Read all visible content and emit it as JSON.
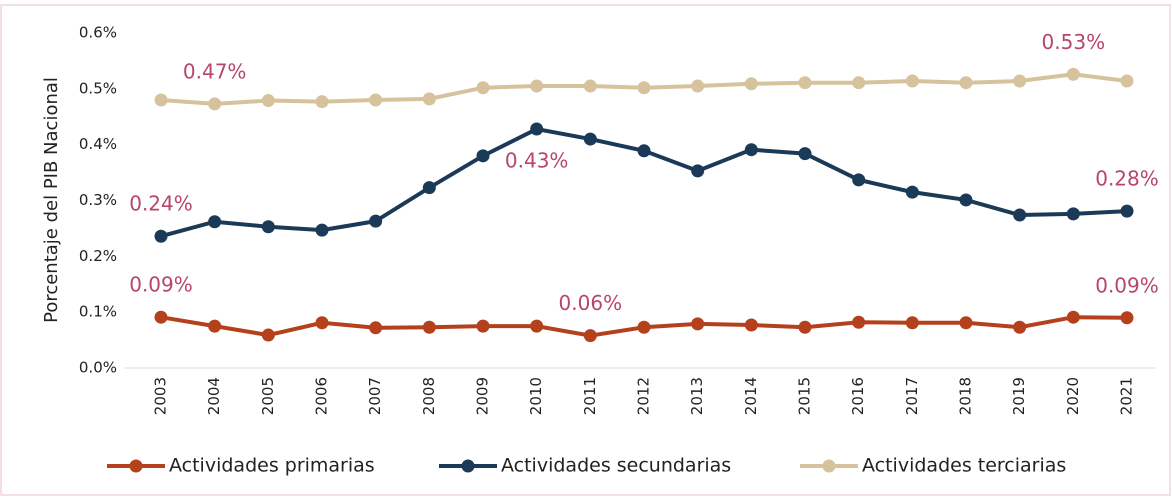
{
  "chart_data": {
    "type": "line",
    "y_label": "Porcentaje del PIB Nacional",
    "categories": [
      "2003",
      "2004",
      "2005",
      "2006",
      "2007",
      "2008",
      "2009",
      "2010",
      "2011",
      "2012",
      "2013",
      "2014",
      "2015",
      "2016",
      "2017",
      "2018",
      "2019",
      "2020",
      "2021"
    ],
    "ylim": [
      0,
      0.6
    ],
    "yticks": [
      {
        "value": 0,
        "label": "0.0%"
      },
      {
        "value": 0.1,
        "label": "0.1%"
      },
      {
        "value": 0.2,
        "label": "0.2%"
      },
      {
        "value": 0.3,
        "label": "0.3%"
      },
      {
        "value": 0.4,
        "label": "0.4%"
      },
      {
        "value": 0.5,
        "label": "0.5%"
      },
      {
        "value": 0.6,
        "label": "0.6%"
      }
    ],
    "value_label_color": "#b8456f",
    "legend": "bottom",
    "series": [
      {
        "name": "Actividades primarias",
        "color": "#b5401c",
        "values": [
          0.091,
          0.075,
          0.059,
          0.081,
          0.072,
          0.073,
          0.075,
          0.075,
          0.058,
          0.073,
          0.079,
          0.077,
          0.073,
          0.082,
          0.081,
          0.081,
          0.073,
          0.091,
          0.09
        ],
        "value_labels": [
          "0.09%",
          null,
          null,
          null,
          null,
          null,
          null,
          null,
          "0.06%",
          null,
          null,
          null,
          null,
          null,
          null,
          null,
          null,
          null,
          "0.09%"
        ]
      },
      {
        "name": "Actividades secundarias",
        "color": "#1b3a57",
        "values": [
          0.236,
          0.262,
          0.253,
          0.247,
          0.263,
          0.323,
          0.38,
          0.428,
          0.41,
          0.389,
          0.353,
          0.391,
          0.384,
          0.337,
          0.315,
          0.301,
          0.274,
          0.276,
          0.281
        ],
        "value_labels": [
          "0.24%",
          null,
          null,
          null,
          null,
          null,
          null,
          "0.43%",
          null,
          null,
          null,
          null,
          null,
          null,
          null,
          null,
          null,
          null,
          "0.28%"
        ]
      },
      {
        "name": "Actividades terciarias",
        "color": "#d6c29c",
        "values": [
          0.48,
          0.473,
          0.479,
          0.477,
          0.48,
          0.482,
          0.502,
          0.505,
          0.505,
          0.502,
          0.505,
          0.509,
          0.511,
          0.511,
          0.514,
          0.511,
          0.514,
          0.526,
          0.514
        ],
        "value_labels": [
          null,
          "0.47%",
          null,
          null,
          null,
          null,
          null,
          null,
          null,
          null,
          null,
          null,
          null,
          null,
          null,
          null,
          null,
          "0.53%",
          null
        ]
      }
    ]
  }
}
